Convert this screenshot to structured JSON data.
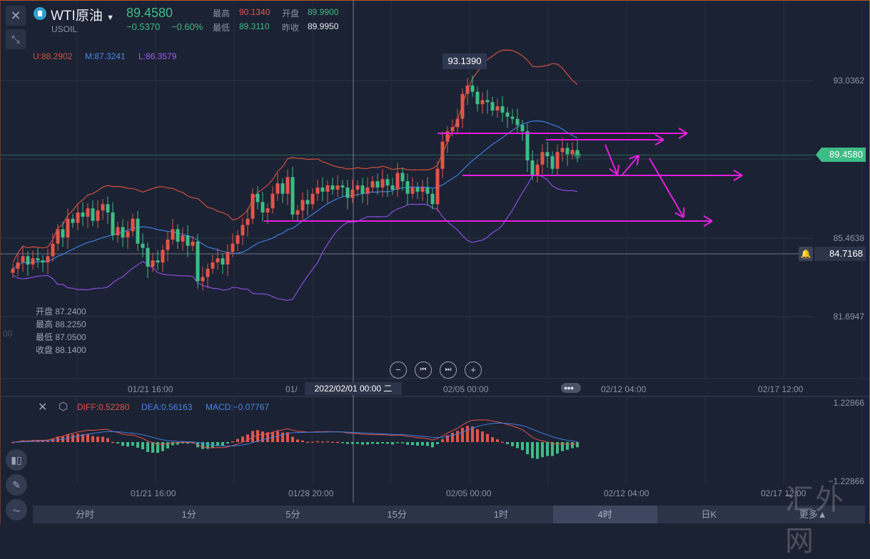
{
  "header": {
    "title": "WTI原油",
    "symbol": "USOIL",
    "price": "89.4580",
    "change": "−0.5370",
    "change_pct": "−0.60%",
    "high_label": "最高",
    "high": "90.1340",
    "open_label": "开盘",
    "open": "89.9900",
    "low_label": "最低",
    "low": "89.3110",
    "prev_close_label": "昨收",
    "prev_close": "89.9950"
  },
  "boll_legend": {
    "upper": "U:88.2902",
    "middle": "M:87.3241",
    "lower": "L:86.3579"
  },
  "ohlc_info": {
    "open": "开盘 87.2400",
    "high": "最高 88.2250",
    "low": "最低 87.0500",
    "close": "收盘 88.1400"
  },
  "left_axis_fragment": "00",
  "price_axis": {
    "labels": [
      "93.0362",
      "85.4638",
      "81.6947"
    ],
    "current_price": "89.4580",
    "crosshair_price": "84.7168"
  },
  "max_marker": "93.1390",
  "crosshair_time": "2022/02/01 00:00 二",
  "time_axis": [
    "01/21 16:00",
    "01/",
    "02/05 00:00",
    "02/12 04:00",
    "02/17 12:00"
  ],
  "macd": {
    "diff": "DIFF:0.52280",
    "dea": "DEA:0.56163",
    "macd": "MACD:−0.07767",
    "axis_max": "1.22866",
    "axis_min": "−1.22866",
    "time_axis": [
      "01/21 16:00",
      "01/28 20:00",
      "02/05 00:00",
      "02/12 04:00",
      "02/17 12:00"
    ]
  },
  "nav": {
    "zoom_out": "−",
    "prev": "⏮",
    "next": "⏭",
    "zoom_in": "+"
  },
  "tabs": [
    "分时",
    "1分",
    "5分",
    "15分",
    "1时",
    "4时",
    "日K",
    "更多▲"
  ],
  "active_tab": "4时",
  "watermark": "汇外网",
  "colors": {
    "up": "#e2544a",
    "down": "#3dbc86",
    "upper": "#d2503f",
    "middle": "#3f7de0",
    "lower": "#8a4fe0",
    "annotation": "#e81ee0",
    "bg": "#1b2233"
  },
  "chart_data": {
    "type": "candlestick",
    "symbol": "USOIL",
    "interval": "4时",
    "ylim": [
      80.5,
      97.0
    ],
    "closes": [
      84.0,
      84.3,
      84.6,
      84.2,
      84.5,
      84.4,
      84.3,
      84.6,
      85.2,
      85.9,
      85.5,
      86.4,
      86.2,
      86.7,
      86.5,
      86.9,
      86.3,
      86.8,
      87.1,
      86.7,
      85.6,
      86.0,
      85.5,
      85.8,
      86.4,
      85.2,
      85.0,
      84.1,
      84.4,
      84.3,
      84.9,
      85.4,
      85.9,
      85.3,
      85.6,
      85.1,
      85.3,
      83.4,
      83.6,
      84.0,
      84.3,
      84.5,
      84.2,
      84.8,
      85.2,
      85.6,
      86.1,
      86.4,
      87.6,
      87.2,
      86.7,
      86.9,
      87.6,
      88.1,
      87.6,
      88.4,
      86.6,
      86.8,
      87.3,
      87.1,
      87.6,
      87.9,
      87.7,
      88.0,
      87.8,
      88.0,
      87.9,
      87.4,
      87.8,
      88.0,
      87.6,
      87.9,
      88.2,
      87.9,
      88.3,
      88.0,
      87.8,
      88.6,
      88.2,
      87.6,
      87.9,
      87.7,
      87.9,
      87.6,
      87.1,
      88.8,
      90.1,
      90.6,
      90.8,
      91.2,
      92.4,
      92.8,
      92.5,
      91.9,
      92.1,
      92.0,
      91.6,
      91.8,
      91.5,
      91.3,
      91.2,
      90.9,
      90.6,
      89.2,
      88.5,
      89.0,
      89.6,
      89.4,
      88.8,
      89.6,
      89.8,
      89.5,
      89.7,
      89.458
    ],
    "indicators": [
      "BOLL(20,2)",
      "MACD(12,26,9)"
    ],
    "annotations": [
      {
        "type": "horizontal-arrow",
        "price": 91.9
      },
      {
        "type": "horizontal-arrow",
        "price": 91.6
      },
      {
        "type": "horizontal-arrow",
        "price": 89.8
      },
      {
        "type": "horizontal-arrow",
        "price": 87.6
      },
      {
        "type": "diagonal-arrow",
        "direction": "down"
      },
      {
        "type": "diagonal-arrow",
        "direction": "up"
      },
      {
        "type": "diagonal-arrow",
        "direction": "down"
      }
    ]
  }
}
